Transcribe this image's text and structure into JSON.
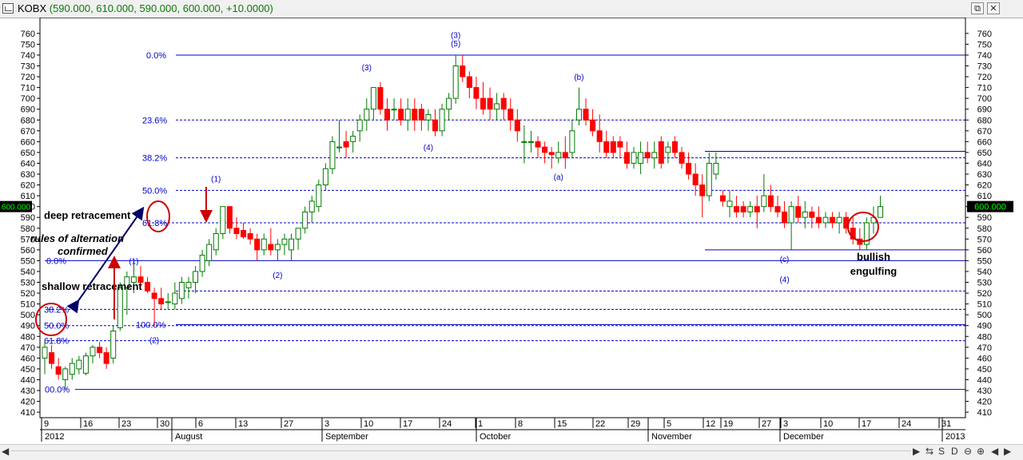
{
  "window": {
    "symbol": "KOBX",
    "ohlc_readout": "(590.000, 610.000, 590.000, 600.000, +10.0000)",
    "restore_glyph": "⧉",
    "close_glyph": "✕"
  },
  "statusbar": {
    "left_glyph": "◀",
    "right_glyph": "▶",
    "tools": [
      "⇆",
      "S",
      "D",
      "⊖",
      "⊕",
      "◀",
      "▶"
    ]
  },
  "colors": {
    "up": "#007a00",
    "up_fill": "#ffffff",
    "down": "#ff0000",
    "fib": "#0000cc",
    "wave_label": "#0000cc",
    "annotation_red": "#cc0000",
    "annotation_navy": "#00006a",
    "price_box": "#000000",
    "price_text": "#00ff00"
  },
  "chart_data": {
    "type": "candlestick",
    "symbol": "KOBX",
    "ylim": [
      400,
      765
    ],
    "y_ticks": [
      410,
      420,
      430,
      440,
      450,
      460,
      470,
      480,
      490,
      500,
      510,
      520,
      530,
      540,
      550,
      560,
      570,
      580,
      590,
      600,
      610,
      620,
      630,
      640,
      650,
      660,
      670,
      680,
      690,
      700,
      710,
      720,
      730,
      740,
      750,
      760
    ],
    "last_price_label": "600.000",
    "x_day_labels": [
      "9",
      "16",
      "23",
      "30",
      "6",
      "13",
      "27",
      "3",
      "10",
      "17",
      "24",
      "1",
      "8",
      "15",
      "22",
      "29",
      "5",
      "12",
      "19",
      "27",
      "3",
      "10",
      "17",
      "24",
      "31"
    ],
    "x_month_labels": [
      "2012",
      "August",
      "September",
      "October",
      "November",
      "December",
      "2013"
    ],
    "candles": [
      {
        "o": 460,
        "h": 475,
        "l": 445,
        "c": 470
      },
      {
        "o": 465,
        "h": 472,
        "l": 450,
        "c": 455
      },
      {
        "o": 452,
        "h": 460,
        "l": 440,
        "c": 445
      },
      {
        "o": 440,
        "h": 452,
        "l": 431,
        "c": 450
      },
      {
        "o": 445,
        "h": 460,
        "l": 440,
        "c": 455
      },
      {
        "o": 450,
        "h": 462,
        "l": 445,
        "c": 458
      },
      {
        "o": 446,
        "h": 465,
        "l": 444,
        "c": 462
      },
      {
        "o": 462,
        "h": 472,
        "l": 455,
        "c": 470
      },
      {
        "o": 470,
        "h": 475,
        "l": 460,
        "c": 465
      },
      {
        "o": 465,
        "h": 470,
        "l": 450,
        "c": 455
      },
      {
        "o": 460,
        "h": 490,
        "l": 455,
        "c": 485
      },
      {
        "o": 488,
        "h": 530,
        "l": 485,
        "c": 525
      },
      {
        "o": 525,
        "h": 540,
        "l": 500,
        "c": 535
      },
      {
        "o": 530,
        "h": 550,
        "l": 520,
        "c": 535
      },
      {
        "o": 535,
        "h": 545,
        "l": 525,
        "c": 530
      },
      {
        "o": 530,
        "h": 535,
        "l": 520,
        "c": 522
      },
      {
        "o": 520,
        "h": 525,
        "l": 490,
        "c": 515
      },
      {
        "o": 515,
        "h": 525,
        "l": 505,
        "c": 510
      },
      {
        "o": 512,
        "h": 520,
        "l": 505,
        "c": 512
      },
      {
        "o": 510,
        "h": 530,
        "l": 505,
        "c": 520
      },
      {
        "o": 515,
        "h": 535,
        "l": 510,
        "c": 530
      },
      {
        "o": 525,
        "h": 535,
        "l": 515,
        "c": 530
      },
      {
        "o": 530,
        "h": 545,
        "l": 520,
        "c": 540
      },
      {
        "o": 540,
        "h": 560,
        "l": 535,
        "c": 555
      },
      {
        "o": 550,
        "h": 570,
        "l": 545,
        "c": 565
      },
      {
        "o": 560,
        "h": 580,
        "l": 555,
        "c": 575
      },
      {
        "o": 575,
        "h": 600,
        "l": 570,
        "c": 600
      },
      {
        "o": 600,
        "h": 600,
        "l": 575,
        "c": 580
      },
      {
        "o": 580,
        "h": 590,
        "l": 570,
        "c": 575
      },
      {
        "o": 578,
        "h": 585,
        "l": 570,
        "c": 572
      },
      {
        "o": 575,
        "h": 580,
        "l": 565,
        "c": 570
      },
      {
        "o": 570,
        "h": 575,
        "l": 550,
        "c": 560
      },
      {
        "o": 560,
        "h": 575,
        "l": 555,
        "c": 570
      },
      {
        "o": 565,
        "h": 580,
        "l": 555,
        "c": 560
      },
      {
        "o": 560,
        "h": 570,
        "l": 550,
        "c": 565
      },
      {
        "o": 565,
        "h": 575,
        "l": 555,
        "c": 570
      },
      {
        "o": 560,
        "h": 575,
        "l": 550,
        "c": 570
      },
      {
        "o": 570,
        "h": 580,
        "l": 560,
        "c": 580
      },
      {
        "o": 580,
        "h": 600,
        "l": 575,
        "c": 595
      },
      {
        "o": 595,
        "h": 610,
        "l": 585,
        "c": 605
      },
      {
        "o": 600,
        "h": 625,
        "l": 595,
        "c": 620
      },
      {
        "o": 620,
        "h": 640,
        "l": 615,
        "c": 635
      },
      {
        "o": 635,
        "h": 665,
        "l": 630,
        "c": 660
      },
      {
        "o": 655,
        "h": 680,
        "l": 650,
        "c": 655
      },
      {
        "o": 660,
        "h": 670,
        "l": 645,
        "c": 655
      },
      {
        "o": 660,
        "h": 670,
        "l": 650,
        "c": 665
      },
      {
        "o": 670,
        "h": 685,
        "l": 660,
        "c": 680
      },
      {
        "o": 680,
        "h": 700,
        "l": 670,
        "c": 690
      },
      {
        "o": 690,
        "h": 710,
        "l": 680,
        "c": 710
      },
      {
        "o": 710,
        "h": 715,
        "l": 685,
        "c": 690
      },
      {
        "o": 690,
        "h": 700,
        "l": 670,
        "c": 680
      },
      {
        "o": 690,
        "h": 700,
        "l": 680,
        "c": 690
      },
      {
        "o": 690,
        "h": 700,
        "l": 675,
        "c": 680
      },
      {
        "o": 680,
        "h": 700,
        "l": 670,
        "c": 690
      },
      {
        "o": 690,
        "h": 700,
        "l": 670,
        "c": 680
      },
      {
        "o": 690,
        "h": 695,
        "l": 670,
        "c": 680
      },
      {
        "o": 680,
        "h": 690,
        "l": 670,
        "c": 685
      },
      {
        "o": 680,
        "h": 690,
        "l": 665,
        "c": 670
      },
      {
        "o": 670,
        "h": 695,
        "l": 665,
        "c": 690
      },
      {
        "o": 690,
        "h": 705,
        "l": 680,
        "c": 700
      },
      {
        "o": 700,
        "h": 740,
        "l": 695,
        "c": 730
      },
      {
        "o": 730,
        "h": 740,
        "l": 715,
        "c": 720
      },
      {
        "o": 720,
        "h": 725,
        "l": 700,
        "c": 710
      },
      {
        "o": 710,
        "h": 720,
        "l": 690,
        "c": 700
      },
      {
        "o": 700,
        "h": 715,
        "l": 685,
        "c": 690
      },
      {
        "o": 700,
        "h": 710,
        "l": 680,
        "c": 690
      },
      {
        "o": 690,
        "h": 705,
        "l": 680,
        "c": 695
      },
      {
        "o": 700,
        "h": 705,
        "l": 680,
        "c": 690
      },
      {
        "o": 690,
        "h": 700,
        "l": 670,
        "c": 680
      },
      {
        "o": 680,
        "h": 690,
        "l": 660,
        "c": 670
      },
      {
        "o": 660,
        "h": 675,
        "l": 640,
        "c": 660
      },
      {
        "o": 660,
        "h": 670,
        "l": 650,
        "c": 660
      },
      {
        "o": 660,
        "h": 665,
        "l": 645,
        "c": 655
      },
      {
        "o": 655,
        "h": 660,
        "l": 640,
        "c": 650
      },
      {
        "o": 650,
        "h": 655,
        "l": 635,
        "c": 648
      },
      {
        "o": 645,
        "h": 660,
        "l": 640,
        "c": 650
      },
      {
        "o": 650,
        "h": 665,
        "l": 635,
        "c": 645
      },
      {
        "o": 650,
        "h": 680,
        "l": 645,
        "c": 670
      },
      {
        "o": 680,
        "h": 710,
        "l": 675,
        "c": 690
      },
      {
        "o": 690,
        "h": 700,
        "l": 675,
        "c": 680
      },
      {
        "o": 680,
        "h": 690,
        "l": 665,
        "c": 670
      },
      {
        "o": 670,
        "h": 685,
        "l": 650,
        "c": 660
      },
      {
        "o": 660,
        "h": 670,
        "l": 645,
        "c": 650
      },
      {
        "o": 660,
        "h": 665,
        "l": 645,
        "c": 650
      },
      {
        "o": 660,
        "h": 665,
        "l": 645,
        "c": 655
      },
      {
        "o": 650,
        "h": 660,
        "l": 635,
        "c": 640
      },
      {
        "o": 640,
        "h": 655,
        "l": 635,
        "c": 650
      },
      {
        "o": 640,
        "h": 660,
        "l": 630,
        "c": 650
      },
      {
        "o": 650,
        "h": 660,
        "l": 640,
        "c": 645
      },
      {
        "o": 645,
        "h": 660,
        "l": 635,
        "c": 650
      },
      {
        "o": 660,
        "h": 665,
        "l": 635,
        "c": 640
      },
      {
        "o": 650,
        "h": 660,
        "l": 640,
        "c": 655
      },
      {
        "o": 660,
        "h": 665,
        "l": 645,
        "c": 650
      },
      {
        "o": 650,
        "h": 655,
        "l": 635,
        "c": 640
      },
      {
        "o": 640,
        "h": 650,
        "l": 625,
        "c": 630
      },
      {
        "o": 630,
        "h": 640,
        "l": 610,
        "c": 620
      },
      {
        "o": 620,
        "h": 630,
        "l": 590,
        "c": 610
      },
      {
        "o": 610,
        "h": 650,
        "l": 605,
        "c": 640
      },
      {
        "o": 630,
        "h": 650,
        "l": 625,
        "c": 640
      },
      {
        "o": 610,
        "h": 615,
        "l": 600,
        "c": 605
      },
      {
        "o": 600,
        "h": 615,
        "l": 590,
        "c": 605
      },
      {
        "o": 600,
        "h": 610,
        "l": 590,
        "c": 595
      },
      {
        "o": 600,
        "h": 605,
        "l": 590,
        "c": 595
      },
      {
        "o": 595,
        "h": 605,
        "l": 590,
        "c": 600
      },
      {
        "o": 600,
        "h": 610,
        "l": 580,
        "c": 595
      },
      {
        "o": 600,
        "h": 630,
        "l": 595,
        "c": 610
      },
      {
        "o": 610,
        "h": 620,
        "l": 595,
        "c": 600
      },
      {
        "o": 600,
        "h": 610,
        "l": 590,
        "c": 595
      },
      {
        "o": 595,
        "h": 605,
        "l": 580,
        "c": 585
      },
      {
        "o": 585,
        "h": 605,
        "l": 560,
        "c": 600
      },
      {
        "o": 600,
        "h": 610,
        "l": 585,
        "c": 590
      },
      {
        "o": 590,
        "h": 605,
        "l": 580,
        "c": 595
      },
      {
        "o": 595,
        "h": 600,
        "l": 580,
        "c": 590
      },
      {
        "o": 590,
        "h": 600,
        "l": 580,
        "c": 585
      },
      {
        "o": 585,
        "h": 595,
        "l": 580,
        "c": 590
      },
      {
        "o": 590,
        "h": 595,
        "l": 580,
        "c": 585
      },
      {
        "o": 585,
        "h": 595,
        "l": 575,
        "c": 590
      },
      {
        "o": 590,
        "h": 595,
        "l": 575,
        "c": 580
      },
      {
        "o": 580,
        "h": 590,
        "l": 565,
        "c": 570
      },
      {
        "o": 570,
        "h": 580,
        "l": 560,
        "c": 565
      },
      {
        "o": 565,
        "h": 590,
        "l": 560,
        "c": 585
      },
      {
        "o": 585,
        "h": 600,
        "l": 575,
        "c": 590
      },
      {
        "o": 590,
        "h": 610,
        "l": 590,
        "c": 600
      }
    ],
    "fib_sets": [
      {
        "levels": [
          {
            "label": "00.0%",
            "price": 431
          },
          {
            "label": "61.8%",
            "price": 476
          },
          {
            "label": "50.0%",
            "price": 490
          },
          {
            "label": "38.2%",
            "price": 505
          },
          {
            "label": "0.0%",
            "price": 550
          },
          {
            "label": "61.8%",
            "price": 585
          }
        ]
      },
      {
        "levels": [
          {
            "label": "100.0%",
            "price": 491
          },
          {
            "label": "",
            "price": 522
          },
          {
            "label": "50.0%",
            "price": 615
          },
          {
            "label": "38.2%",
            "price": 645
          },
          {
            "label": "23.6%",
            "price": 680
          },
          {
            "label": "0.0%",
            "price": 740
          }
        ]
      }
    ],
    "extra_lines": [
      {
        "price": 560,
        "label": ""
      },
      {
        "price": 651,
        "label": ""
      }
    ],
    "wave_labels": [
      {
        "text": "(1)",
        "bar": 13,
        "price": 547
      },
      {
        "text": "(2)",
        "bar": 16,
        "price": 474
      },
      {
        "text": "(1)",
        "bar": 25,
        "price": 623
      },
      {
        "text": "(2)",
        "bar": 34,
        "price": 534
      },
      {
        "text": "(3)",
        "bar": 47,
        "price": 726
      },
      {
        "text": "(4)",
        "bar": 56,
        "price": 652
      },
      {
        "text": "(3)",
        "bar": 60,
        "price": 756
      },
      {
        "text": "(5)",
        "bar": 60,
        "price": 748
      },
      {
        "text": "(b)",
        "bar": 78,
        "price": 717
      },
      {
        "text": "(a)",
        "bar": 75,
        "price": 625
      },
      {
        "text": "(c)",
        "bar": 108,
        "price": 549
      },
      {
        "text": "(4)",
        "bar": 108,
        "price": 530
      }
    ],
    "annotations": [
      {
        "text": "deep retracement"
      },
      {
        "text": "rules of alternation"
      },
      {
        "text": "confirmed"
      },
      {
        "text": "shallow retracement"
      },
      {
        "text": "bullish"
      },
      {
        "text": "engulfing"
      }
    ]
  }
}
